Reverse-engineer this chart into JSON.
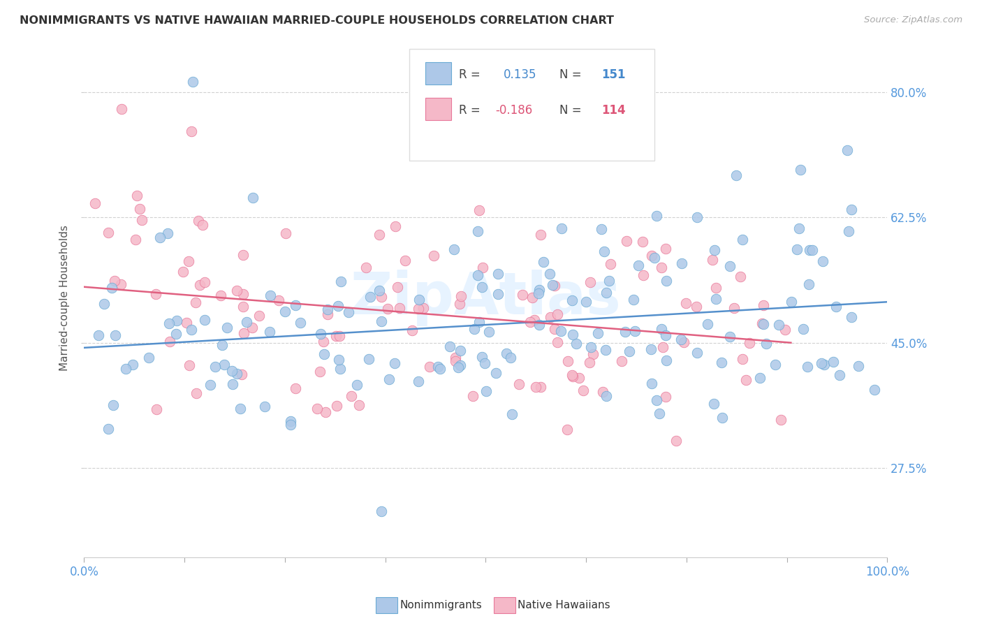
{
  "title": "NONIMMIGRANTS VS NATIVE HAWAIIAN MARRIED-COUPLE HOUSEHOLDS CORRELATION CHART",
  "source": "Source: ZipAtlas.com",
  "ylabel": "Married-couple Households",
  "yticks": [
    0.275,
    0.45,
    0.625,
    0.8
  ],
  "ytick_labels": [
    "27.5%",
    "45.0%",
    "62.5%",
    "80.0%"
  ],
  "blue_R": 0.135,
  "blue_N": 151,
  "pink_R": -0.186,
  "pink_N": 114,
  "blue_fill": "#adc8e8",
  "pink_fill": "#f5b8c8",
  "blue_edge": "#6aaad4",
  "pink_edge": "#e8789a",
  "blue_line_color": "#5590cc",
  "pink_line_color": "#e06080",
  "blue_label": "Nonimmigrants",
  "pink_label": "Native Hawaiians",
  "legend_text_color": "#444444",
  "legend_blue_val_color": "#4488cc",
  "legend_pink_val_color": "#dd5577",
  "background_color": "#ffffff",
  "grid_color": "#cccccc",
  "title_color": "#333333",
  "source_color": "#aaaaaa",
  "yright_color": "#5599dd",
  "xtick_color": "#5599dd",
  "ylabel_color": "#555555",
  "watermark_color": "#ddeeff",
  "xmin": 0.0,
  "xmax": 1.0,
  "ymin": 0.15,
  "ymax": 0.875,
  "blue_line_x": [
    0.0,
    1.0
  ],
  "blue_line_y": [
    0.443,
    0.507
  ],
  "pink_line_x": [
    0.0,
    0.88
  ],
  "pink_line_y": [
    0.528,
    0.45
  ]
}
